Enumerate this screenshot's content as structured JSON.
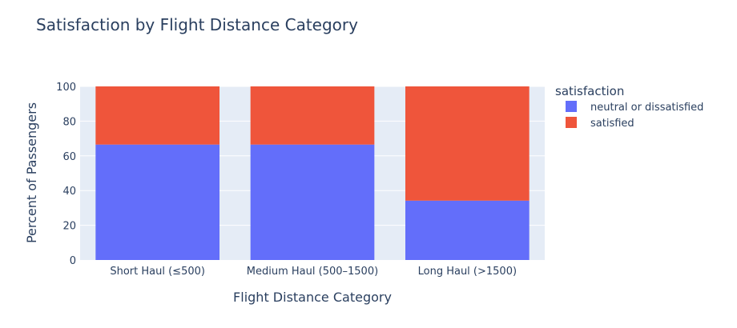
{
  "chart_data": {
    "type": "bar",
    "barmode": "stack",
    "title": "Satisfaction by Flight Distance Category",
    "xlabel": "Flight Distance Category",
    "ylabel": "Percent of Passengers",
    "categories": [
      "Short Haul (≤500)",
      "Medium Haul (500–1500)",
      "Long Haul (>1500)"
    ],
    "series": [
      {
        "name": "neutral or dissatisfied",
        "color": "#636efa",
        "values": [
          66.5,
          66.5,
          34.2
        ]
      },
      {
        "name": "satisfied",
        "color": "#ef553b",
        "values": [
          33.5,
          33.5,
          65.8
        ]
      }
    ],
    "ylim": [
      0,
      100
    ],
    "yticks": [
      0,
      20,
      40,
      60,
      80,
      100
    ],
    "grid": true,
    "plot_background": "#e5ecf6",
    "legend": {
      "title": "satisfaction",
      "placement": "right"
    }
  }
}
